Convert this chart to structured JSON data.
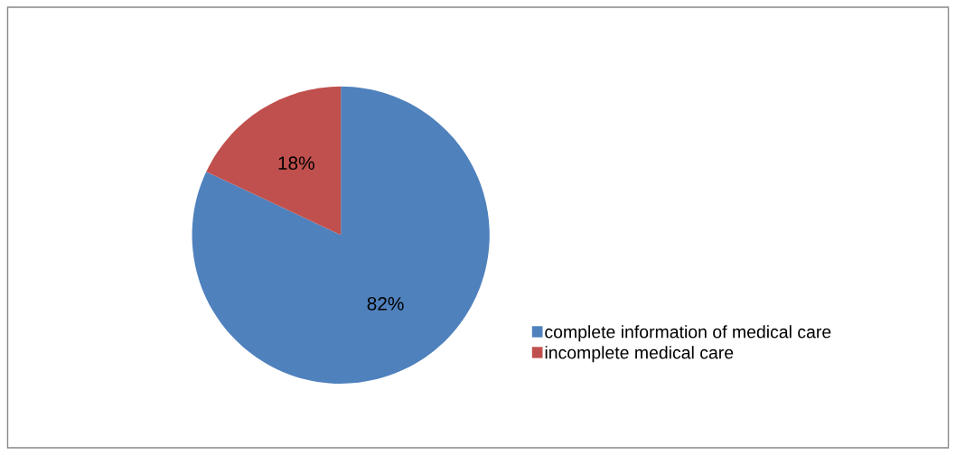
{
  "chart_data": {
    "type": "pie",
    "categories": [
      "complete information of medical care",
      "incomplete medical care"
    ],
    "values": [
      82,
      18
    ],
    "colors": [
      "#4f81bd",
      "#c0504d"
    ],
    "value_labels": [
      "82%",
      "18%"
    ],
    "legend": "right"
  }
}
